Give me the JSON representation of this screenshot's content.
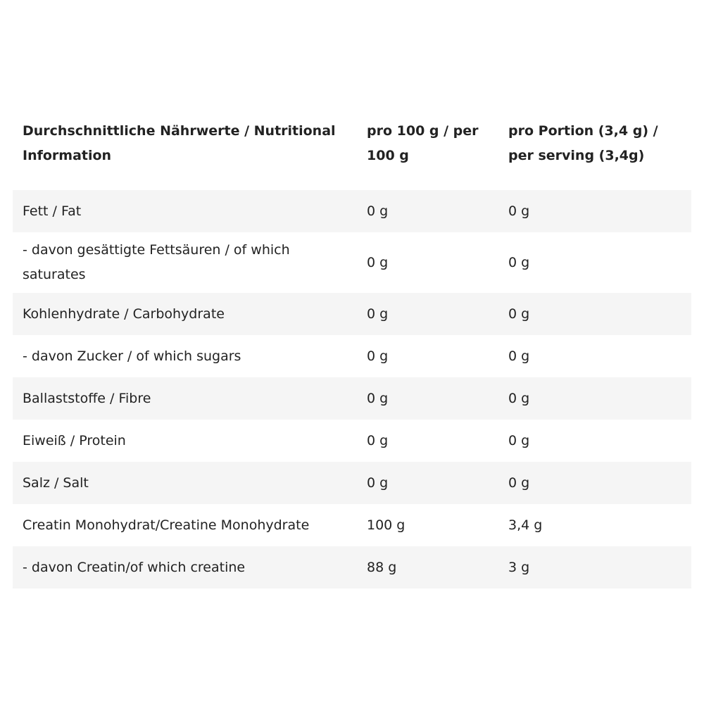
{
  "table": {
    "header": [
      "Durchschnittliche Nährwerte / Nutritional Information",
      "pro 100 g / per 100 g",
      "pro Portion (3,4 g) / per serving (3,4g)"
    ],
    "rows": [
      [
        "Fett / Fat",
        "0 g",
        "0 g"
      ],
      [
        "- davon gesättigte Fettsäuren / of which saturates",
        "0 g",
        "0 g"
      ],
      [
        "Kohlenhydrate / Carbohydrate",
        "0 g",
        "0 g"
      ],
      [
        "- davon Zucker / of which sugars",
        "0 g",
        "0 g"
      ],
      [
        "Ballaststoffe / Fibre",
        "0 g",
        "0 g"
      ],
      [
        "Eiweiß / Protein",
        "0 g",
        "0 g"
      ],
      [
        "Salz / Salt",
        "0 g",
        "0 g"
      ],
      [
        "Creatin Monohydrat/Creatine Monohydrate",
        "100 g",
        "3,4 g"
      ],
      [
        "- davon Creatin/of which creatine",
        "88 g",
        "3 g"
      ]
    ]
  }
}
